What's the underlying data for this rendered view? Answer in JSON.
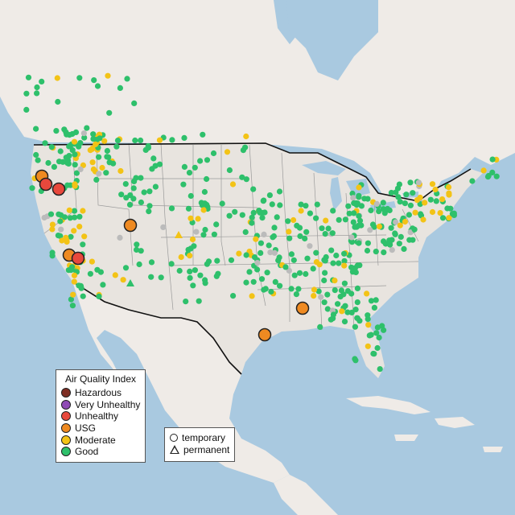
{
  "colors": {
    "water": "#a9c9e0",
    "land": "#efebe7",
    "land_alt": "#e7e3de",
    "good": "#2ec06b",
    "moderate": "#f3c316",
    "usg": "#ef8a21",
    "unhealthy": "#e8483c",
    "very_unhealthy": "#8f4bb5",
    "hazardous": "#7e2e23",
    "grey_station": "#bbbbbb"
  },
  "legend": {
    "title": "Air Quality Index",
    "items": [
      {
        "label": "Hazardous",
        "color": "#7e2e23"
      },
      {
        "label": "Very Unhealthy",
        "color": "#8f4bb5"
      },
      {
        "label": "Unhealthy",
        "color": "#e8483c"
      },
      {
        "label": "USG",
        "color": "#ef8a21"
      },
      {
        "label": "Moderate",
        "color": "#f3c316"
      },
      {
        "label": "Good",
        "color": "#2ec06b"
      }
    ]
  },
  "type_legend": {
    "temporary": "temporary",
    "permanent": "permanent"
  }
}
